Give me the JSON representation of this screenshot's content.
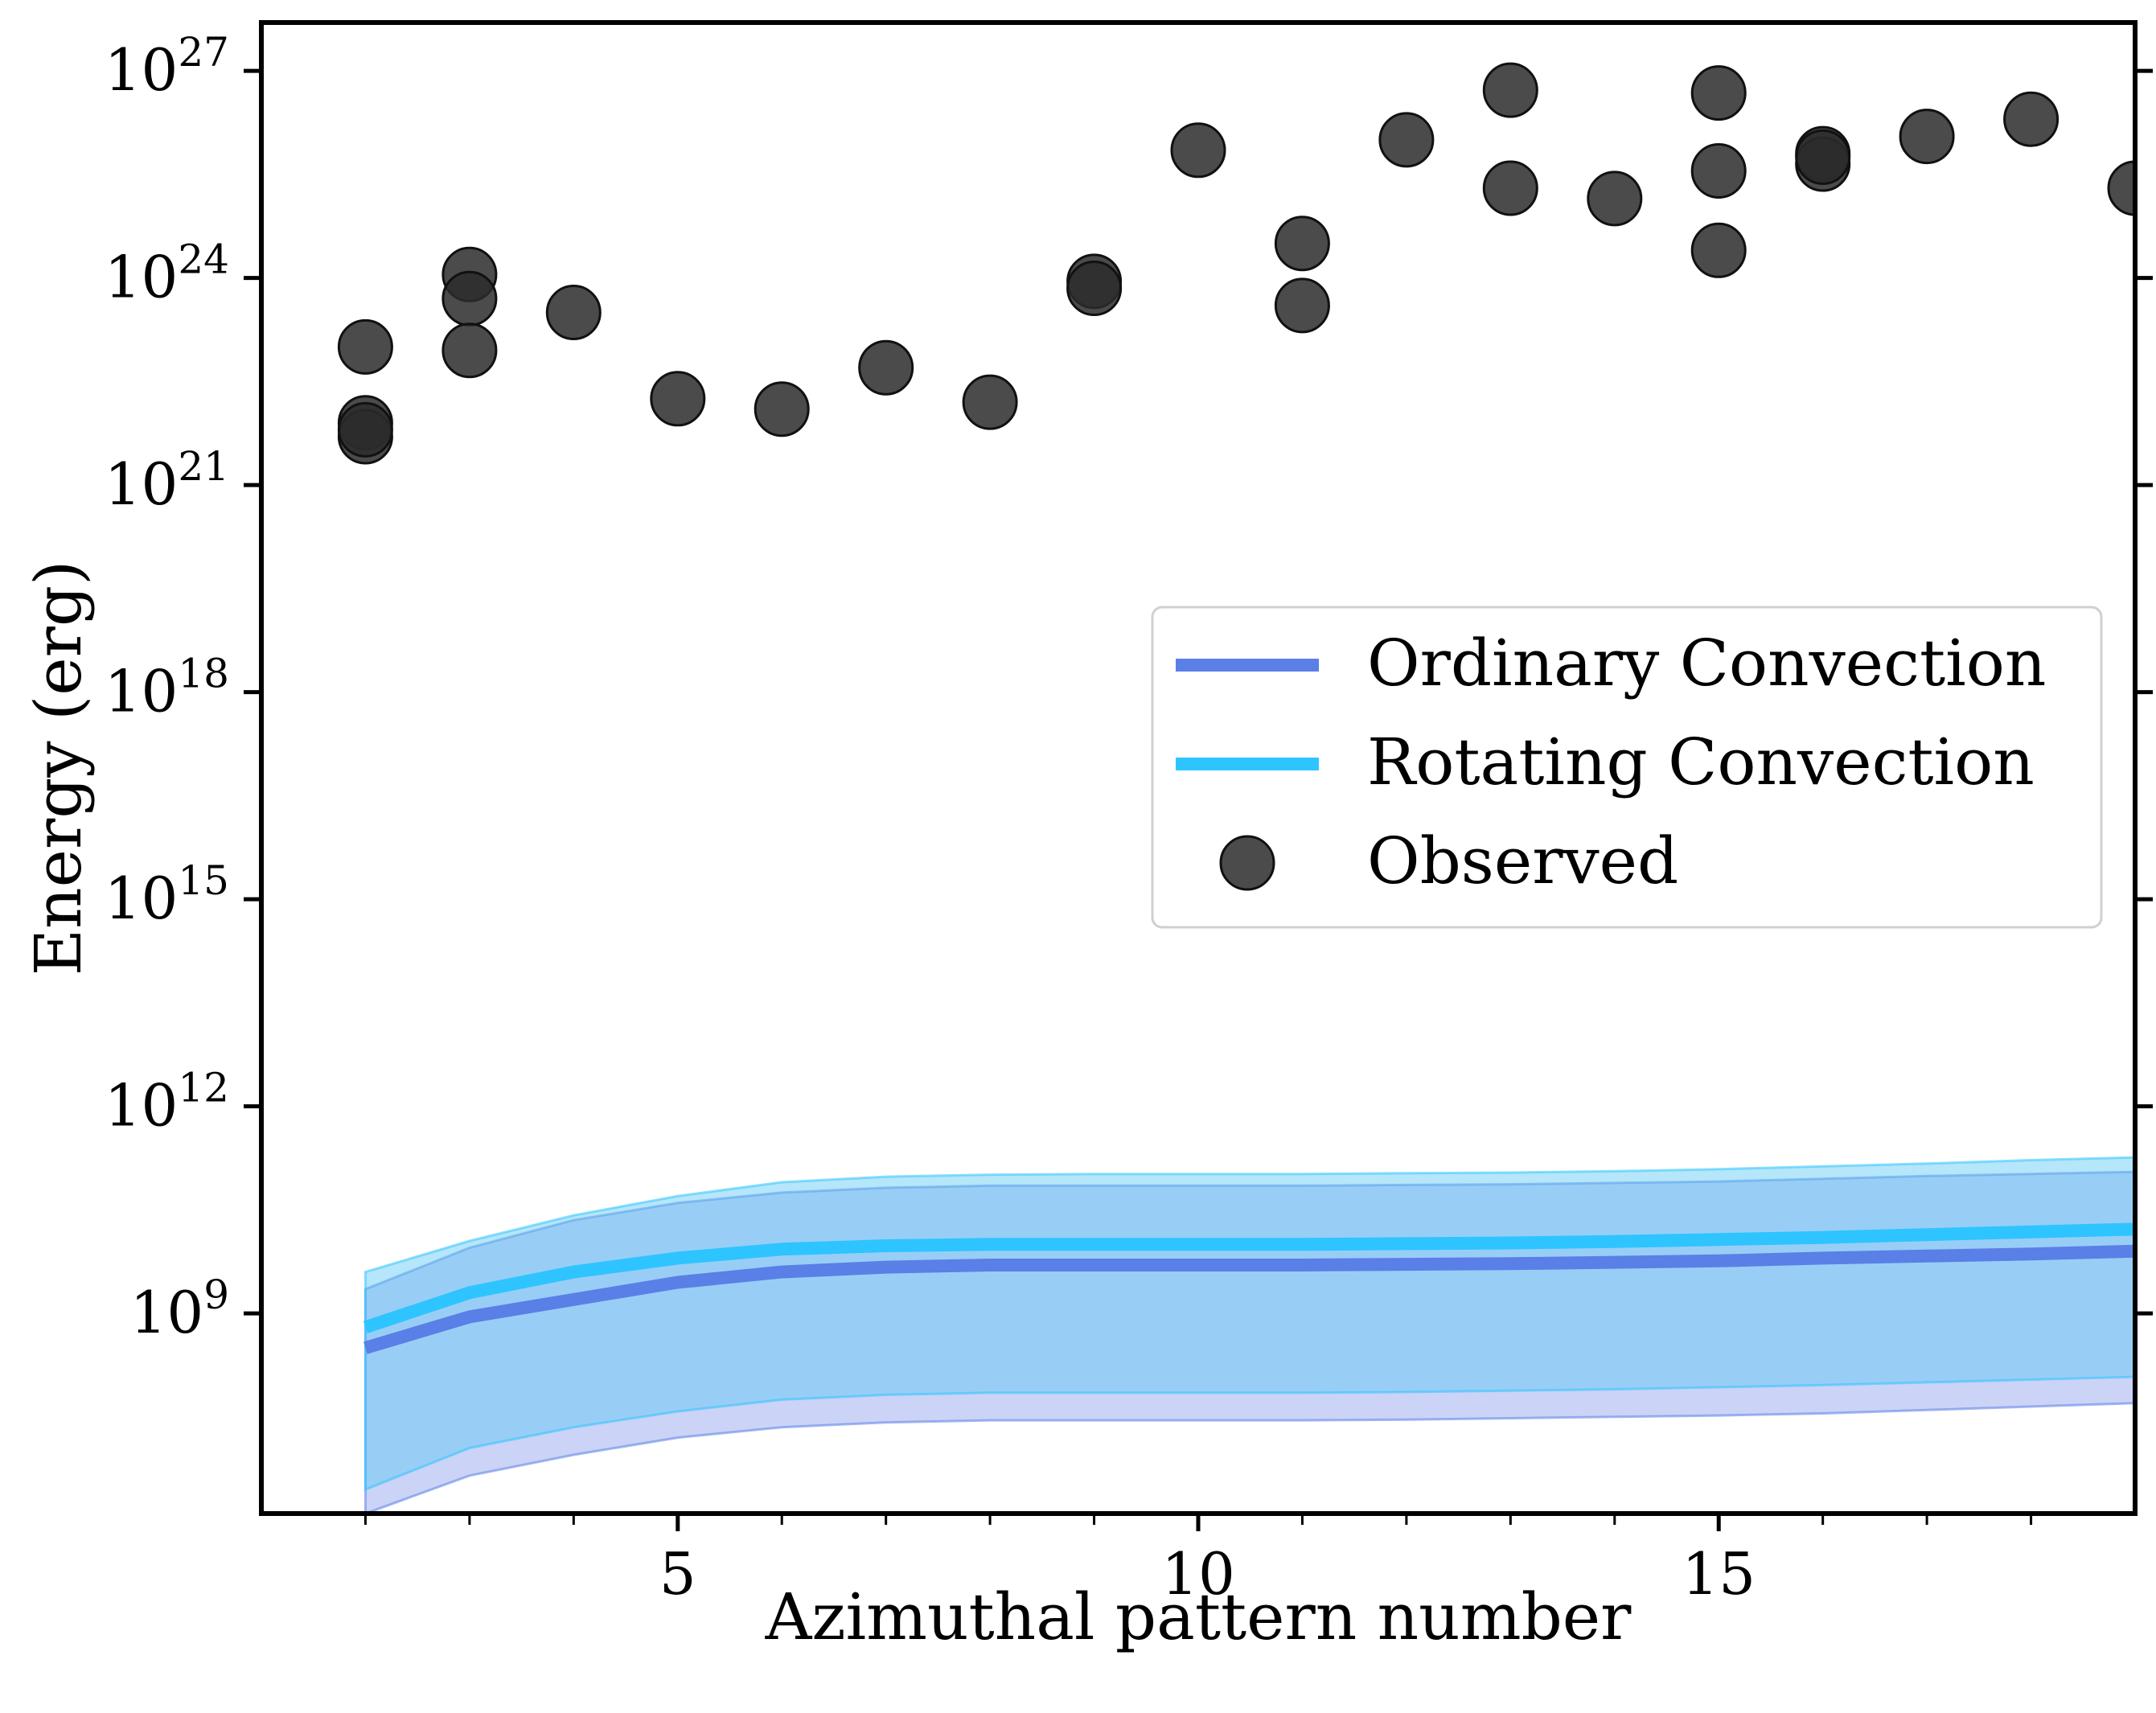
{
  "chart_data": {
    "type": "line",
    "title": "",
    "xlabel": "Azimuthal pattern number",
    "ylabel": "Energy (erg)",
    "xlim": [
      1,
      19
    ],
    "ylim_log10": [
      6.1,
      27.7
    ],
    "yscale": "log",
    "grid": false,
    "legend_position": "center-right",
    "x_ticks": [
      5,
      10,
      15
    ],
    "x_minor_ticks": [
      2,
      3,
      4,
      6,
      7,
      8,
      9,
      11,
      12,
      13,
      14,
      16,
      17,
      18
    ],
    "y_ticks": [
      {
        "base": "10",
        "exp": "27",
        "log10": 27
      },
      {
        "base": "10",
        "exp": "24",
        "log10": 24
      },
      {
        "base": "10",
        "exp": "21",
        "log10": 21
      },
      {
        "base": "10",
        "exp": "18",
        "log10": 18
      },
      {
        "base": "10",
        "exp": "15",
        "log10": 15
      },
      {
        "base": "10",
        "exp": "12",
        "log10": 12
      },
      {
        "base": "10",
        "exp": "9",
        "log10": 9
      }
    ],
    "colors": {
      "ordinary": "#5a7fe6",
      "ordinary_band": "#a9b6f2",
      "rotating": "#2ec4ff",
      "rotating_band": "#5cc8f5",
      "observed": "#2b2b2b"
    },
    "series": [
      {
        "name": "Ordinary Convection",
        "x": [
          2,
          3,
          4,
          5,
          6,
          7,
          8,
          9,
          10,
          11,
          12,
          13,
          14,
          15,
          16,
          17,
          18,
          19
        ],
        "y_log10": [
          8.5,
          8.95,
          9.2,
          9.45,
          9.6,
          9.67,
          9.7,
          9.7,
          9.7,
          9.7,
          9.71,
          9.72,
          9.74,
          9.76,
          9.8,
          9.83,
          9.86,
          9.9
        ],
        "lower_log10": [
          6.1,
          6.65,
          6.95,
          7.2,
          7.35,
          7.42,
          7.45,
          7.45,
          7.45,
          7.45,
          7.46,
          7.48,
          7.5,
          7.52,
          7.55,
          7.6,
          7.65,
          7.7
        ],
        "upper_log10": [
          9.35,
          9.95,
          10.35,
          10.6,
          10.75,
          10.82,
          10.85,
          10.85,
          10.85,
          10.85,
          10.86,
          10.87,
          10.89,
          10.91,
          10.95,
          10.99,
          11.02,
          11.05
        ]
      },
      {
        "name": "Rotating Convection",
        "x": [
          2,
          3,
          4,
          5,
          6,
          7,
          8,
          9,
          10,
          11,
          12,
          13,
          14,
          15,
          16,
          17,
          18,
          19
        ],
        "y_log10": [
          8.8,
          9.3,
          9.6,
          9.8,
          9.93,
          9.98,
          10.0,
          10.0,
          10.0,
          10.0,
          10.01,
          10.02,
          10.04,
          10.07,
          10.1,
          10.14,
          10.18,
          10.22
        ],
        "lower_log10": [
          6.45,
          7.05,
          7.35,
          7.58,
          7.75,
          7.82,
          7.85,
          7.85,
          7.85,
          7.85,
          7.86,
          7.88,
          7.9,
          7.93,
          7.96,
          8.0,
          8.04,
          8.08
        ],
        "upper_log10": [
          9.6,
          10.05,
          10.42,
          10.7,
          10.9,
          10.98,
          11.01,
          11.02,
          11.02,
          11.02,
          11.03,
          11.04,
          11.06,
          11.09,
          11.13,
          11.17,
          11.22,
          11.26
        ]
      }
    ],
    "scatter": {
      "name": "Observed",
      "points": [
        {
          "x": 2,
          "y_log10": 23.0
        },
        {
          "x": 2,
          "y_log10": 21.9
        },
        {
          "x": 2,
          "y_log10": 21.7
        },
        {
          "x": 2,
          "y_log10": 21.8
        },
        {
          "x": 3,
          "y_log10": 24.05
        },
        {
          "x": 3,
          "y_log10": 23.7
        },
        {
          "x": 3,
          "y_log10": 22.95
        },
        {
          "x": 4,
          "y_log10": 23.5
        },
        {
          "x": 5,
          "y_log10": 22.25
        },
        {
          "x": 6,
          "y_log10": 22.1
        },
        {
          "x": 7,
          "y_log10": 22.7
        },
        {
          "x": 8,
          "y_log10": 22.2
        },
        {
          "x": 9,
          "y_log10": 23.95
        },
        {
          "x": 9,
          "y_log10": 23.85
        },
        {
          "x": 10,
          "y_log10": 25.85
        },
        {
          "x": 11,
          "y_log10": 24.5
        },
        {
          "x": 11,
          "y_log10": 23.6
        },
        {
          "x": 12,
          "y_log10": 26.0
        },
        {
          "x": 13,
          "y_log10": 26.72
        },
        {
          "x": 13,
          "y_log10": 25.3
        },
        {
          "x": 14,
          "y_log10": 25.15
        },
        {
          "x": 15,
          "y_log10": 26.68
        },
        {
          "x": 15,
          "y_log10": 25.55
        },
        {
          "x": 15,
          "y_log10": 24.4
        },
        {
          "x": 16,
          "y_log10": 25.8
        },
        {
          "x": 16,
          "y_log10": 25.65
        },
        {
          "x": 16,
          "y_log10": 25.75
        },
        {
          "x": 17,
          "y_log10": 26.05
        },
        {
          "x": 18,
          "y_log10": 26.3
        },
        {
          "x": 19,
          "y_log10": 25.3
        }
      ]
    }
  }
}
